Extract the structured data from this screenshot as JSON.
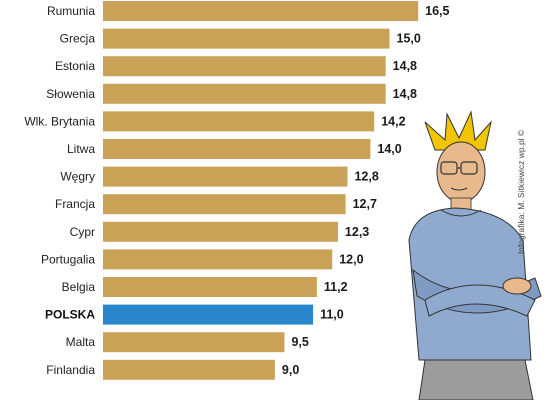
{
  "chart_data": {
    "type": "bar",
    "orientation": "horizontal",
    "categories": [
      "Rumunia",
      "Grecja",
      "Estonia",
      "Słowenia",
      "Wlk. Brytania",
      "Litwa",
      "Węgry",
      "Francja",
      "Cypr",
      "Portugalia",
      "Belgia",
      "POLSKA",
      "Malta",
      "Finlandia"
    ],
    "values": [
      16.5,
      15.0,
      14.8,
      14.8,
      14.2,
      14.0,
      12.8,
      12.7,
      12.3,
      12.0,
      11.2,
      11.0,
      9.5,
      9.0
    ],
    "value_labels": [
      "16,5",
      "15,0",
      "14,8",
      "14,8",
      "14,2",
      "14,0",
      "12,8",
      "12,7",
      "12,3",
      "12,0",
      "11,2",
      "11,0",
      "9,5",
      "9,0"
    ],
    "highlight_category": "POLSKA",
    "title": "",
    "xlabel": "",
    "ylabel": "",
    "grid": false,
    "legend": "none"
  },
  "colors": {
    "bar": "#c9a257",
    "highlight_bar": "#2a86cc",
    "background": "#ffffff"
  },
  "credit": "Infografika: M. Sitkiewicz wp.pl ©"
}
